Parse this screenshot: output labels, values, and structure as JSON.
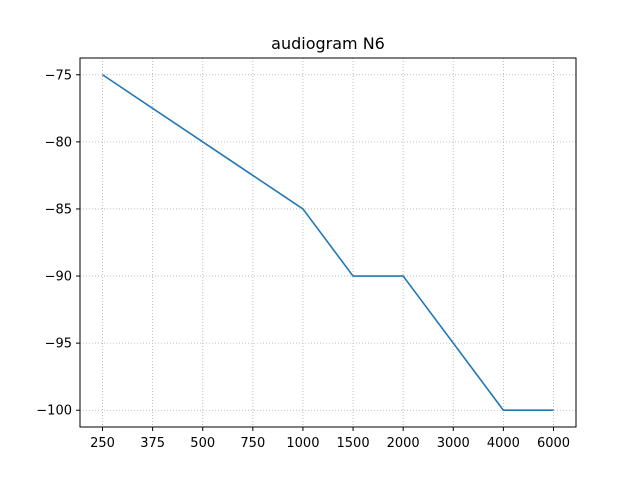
{
  "chart_data": {
    "type": "line",
    "title": "audiogram N6",
    "xlabel": "",
    "ylabel": "",
    "categories": [
      "250",
      "375",
      "500",
      "750",
      "1000",
      "1500",
      "2000",
      "3000",
      "4000",
      "6000"
    ],
    "series": [
      {
        "points": [
          {
            "x": "250",
            "y": -75
          },
          {
            "x": "1000",
            "y": -85
          },
          {
            "x": "1500",
            "y": -90
          },
          {
            "x": "2000",
            "y": -90
          },
          {
            "x": "4000",
            "y": -100
          },
          {
            "x": "6000",
            "y": -100
          }
        ],
        "color": "#1f77b4"
      }
    ],
    "yticks": [
      -75,
      -80,
      -85,
      -90,
      -95,
      -100
    ],
    "ylim": [
      -101.25,
      -73.75
    ],
    "grid": true,
    "grid_style": "dotted",
    "legend": "none"
  }
}
